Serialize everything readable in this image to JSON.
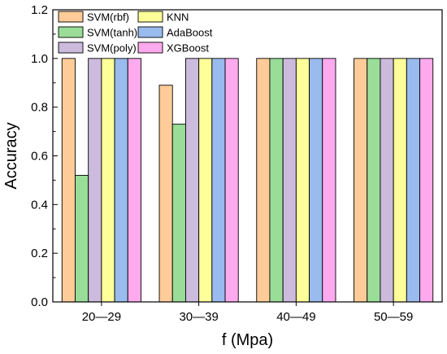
{
  "chart_data": {
    "type": "bar",
    "title": "",
    "xlabel": "f (Mpa)",
    "ylabel": "Accuracy",
    "ylim": [
      0,
      1.2
    ],
    "yticks": [
      "0.0",
      "0.2",
      "0.4",
      "0.6",
      "0.8",
      "1.0",
      "1.2"
    ],
    "grid": false,
    "legend_position": "top-left",
    "legend_columns": 2,
    "categories": [
      "20—29",
      "30—39",
      "40—49",
      "50—59"
    ],
    "series": [
      {
        "name": "SVM(rbf)",
        "color": "#FFCC99",
        "values": [
          1.0,
          0.89,
          1.0,
          1.0
        ]
      },
      {
        "name": "SVM(tanh)",
        "color": "#99DD99",
        "values": [
          0.52,
          0.73,
          1.0,
          1.0
        ]
      },
      {
        "name": "SVM(poly)",
        "color": "#CCBBDD",
        "values": [
          1.0,
          1.0,
          1.0,
          1.0
        ]
      },
      {
        "name": "KNN",
        "color": "#FFFF99",
        "values": [
          1.0,
          1.0,
          1.0,
          1.0
        ]
      },
      {
        "name": "AdaBoost",
        "color": "#99BBEE",
        "values": [
          1.0,
          1.0,
          1.0,
          1.0
        ]
      },
      {
        "name": "XGBoost",
        "color": "#FFAAEE",
        "values": [
          1.0,
          1.0,
          1.0,
          1.0
        ]
      }
    ]
  }
}
